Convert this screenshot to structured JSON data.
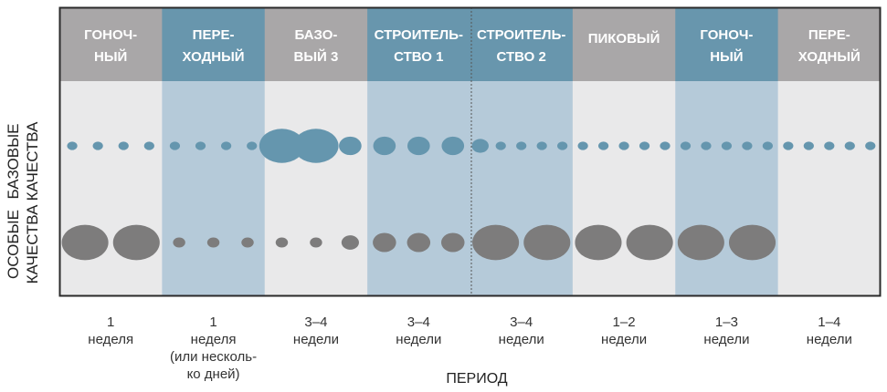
{
  "colors": {
    "header_gray": "#a9a7a8",
    "header_blue": "#6896ad",
    "column_gray": "#e9e9ea",
    "column_blue": "#b5cad9",
    "dot_blue": "#6596ae",
    "dot_gray": "#7d7c7c",
    "frame": "#2a2a2a"
  },
  "row_labels": {
    "base": [
      "БАЗОВЫЕ",
      "КАЧЕСТВА"
    ],
    "special": [
      "ОСОБЫЕ",
      "КАЧЕСТВА"
    ]
  },
  "axis_title": "ПЕРИОД",
  "phases": [
    {
      "header": [
        "ГОНОЧ-",
        "НЫЙ"
      ],
      "style": "gray",
      "duration": [
        "1",
        "неделя"
      ]
    },
    {
      "header": [
        "ПЕРЕ-",
        "ХОДНЫЙ"
      ],
      "style": "blue",
      "duration": [
        "1",
        "неделя",
        "(или несколь-",
        "ко дней)"
      ]
    },
    {
      "header": [
        "БАЗО-",
        "ВЫЙ 3"
      ],
      "style": "gray",
      "duration": [
        "3–4",
        "недели"
      ]
    },
    {
      "header": [
        "СТРОИТЕЛЬ-",
        "СТВО 1"
      ],
      "style": "blue",
      "duration": [
        "3–4",
        "недели"
      ]
    },
    {
      "header": [
        "СТРОИТЕЛЬ-",
        "СТВО 2"
      ],
      "style": "blue",
      "duration": [
        "3–4",
        "недели"
      ]
    },
    {
      "header": [
        "ПИКОВЫЙ"
      ],
      "style": "gray",
      "duration": [
        "1–2",
        "недели"
      ]
    },
    {
      "header": [
        "ГОНОЧ-",
        "НЫЙ"
      ],
      "style": "blue",
      "duration": [
        "1–3",
        "недели"
      ]
    },
    {
      "header": [
        "ПЕРЕ-",
        "ХОДНЫЙ"
      ],
      "style": "gray",
      "duration": [
        "1–4",
        "недели"
      ]
    }
  ],
  "dots": {
    "base": [
      {
        "phase": 0,
        "sizes": [
          1,
          1,
          1,
          1
        ]
      },
      {
        "phase": 1,
        "sizes": [
          1,
          1,
          1,
          1
        ]
      },
      {
        "phase": 2,
        "sizes": [
          4,
          4,
          2
        ]
      },
      {
        "phase": 3,
        "sizes": [
          2,
          2,
          2
        ]
      },
      {
        "phase": 4,
        "sizes": [
          1.5,
          1,
          1,
          1,
          1
        ]
      },
      {
        "phase": 5,
        "sizes": [
          1,
          1,
          1,
          1,
          1
        ]
      },
      {
        "phase": 6,
        "sizes": [
          1,
          1,
          1,
          1,
          1
        ]
      },
      {
        "phase": 7,
        "sizes": [
          1,
          1,
          1,
          1,
          1
        ]
      }
    ],
    "special": [
      {
        "phase": 0,
        "sizes": [
          4,
          4
        ]
      },
      {
        "phase": 1,
        "sizes": [
          1,
          1,
          1
        ]
      },
      {
        "phase": 2,
        "sizes": [
          1,
          1,
          1.5
        ]
      },
      {
        "phase": 3,
        "sizes": [
          2,
          2,
          2
        ]
      },
      {
        "phase": 4,
        "sizes": [
          4,
          4
        ]
      },
      {
        "phase": 5,
        "sizes": [
          4,
          4
        ]
      },
      {
        "phase": 6,
        "sizes": [
          4,
          4
        ]
      },
      {
        "phase": 7,
        "sizes": []
      }
    ]
  }
}
